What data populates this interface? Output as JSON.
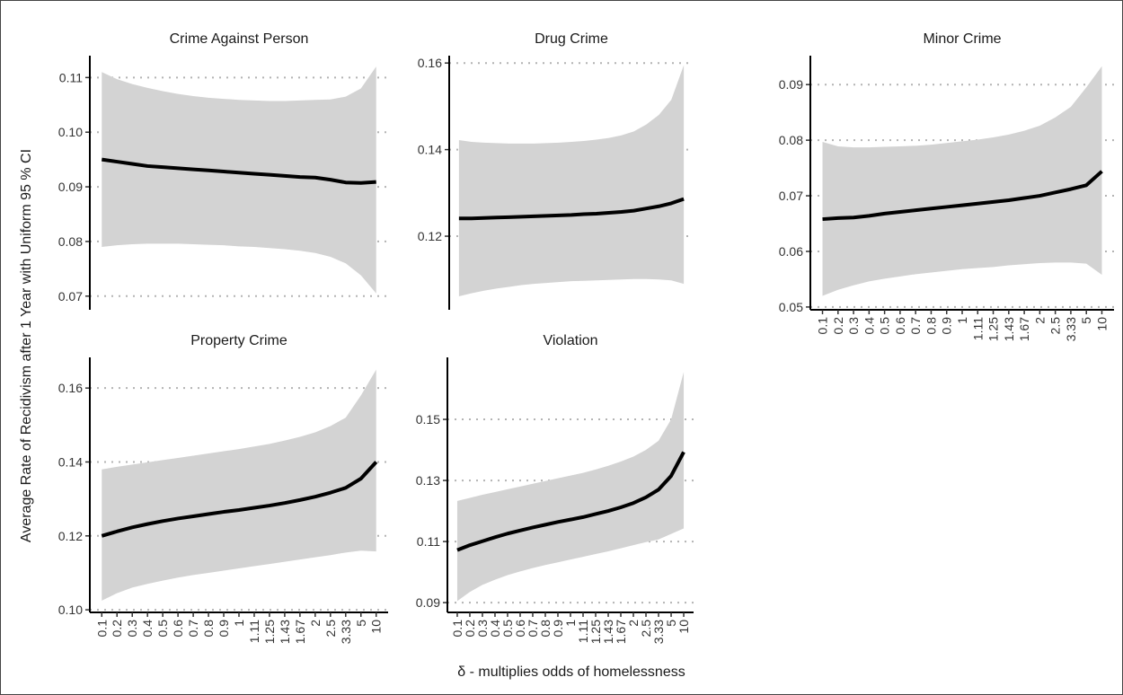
{
  "ylabel": "Average Rate of Recidivism after 1 Year with Uniform 95 % CI",
  "xlabel": "δ - multiplies odds of homelessness",
  "chart_data": [
    {
      "type": "line",
      "title": "Crime Against Person",
      "color": "#000000",
      "band_color": "#d3d3d3",
      "values": [
        0.095,
        0.0946,
        0.0942,
        0.0938,
        0.0936,
        0.0934,
        0.0932,
        0.093,
        0.0928,
        0.0926,
        0.0924,
        0.0922,
        0.092,
        0.0918,
        0.0917,
        0.0913,
        0.0908,
        0.0907,
        0.0909
      ],
      "upper": [
        0.111,
        0.1097,
        0.1088,
        0.1081,
        0.1075,
        0.107,
        0.1066,
        0.1063,
        0.1061,
        0.1059,
        0.1058,
        0.1057,
        0.1057,
        0.1058,
        0.1059,
        0.106,
        0.1065,
        0.108,
        0.112
      ],
      "lower": [
        0.079,
        0.0793,
        0.0795,
        0.0796,
        0.0796,
        0.0796,
        0.0795,
        0.0794,
        0.0793,
        0.0791,
        0.079,
        0.0788,
        0.0786,
        0.0783,
        0.0779,
        0.0772,
        0.076,
        0.0738,
        0.0705
      ],
      "ylim": [
        0.0675,
        0.114
      ],
      "yticks": [
        0.07,
        0.08,
        0.09,
        {
          "value": 0.1,
          "label": "0.10"
        },
        0.11
      ],
      "grid": true
    },
    {
      "type": "line",
      "title": "Drug Crime",
      "color": "#000000",
      "band_color": "#d3d3d3",
      "values": [
        0.1241,
        0.1241,
        0.1242,
        0.1243,
        0.1244,
        0.1245,
        0.1246,
        0.1247,
        0.1248,
        0.1249,
        0.1251,
        0.1252,
        0.1254,
        0.1256,
        0.1259,
        0.1264,
        0.1269,
        0.1276,
        0.1286
      ],
      "upper": [
        0.1422,
        0.1418,
        0.1416,
        0.1415,
        0.1414,
        0.1414,
        0.1414,
        0.1415,
        0.1416,
        0.1418,
        0.142,
        0.1423,
        0.1427,
        0.1433,
        0.1442,
        0.1458,
        0.148,
        0.1515,
        0.1595
      ],
      "lower": [
        0.1061,
        0.1068,
        0.1074,
        0.1079,
        0.1083,
        0.1087,
        0.109,
        0.1092,
        0.1094,
        0.1096,
        0.1097,
        0.1098,
        0.1099,
        0.11,
        0.1101,
        0.1101,
        0.11,
        0.1098,
        0.109
      ],
      "ylim": [
        0.103,
        0.1617
      ],
      "yticks": [
        0.12,
        0.14,
        0.16
      ],
      "grid": true
    },
    {
      "type": "line",
      "title": "Minor Crime",
      "color": "#000000",
      "band_color": "#d3d3d3",
      "categories": [
        "0.1",
        "0.2",
        "0.3",
        "0.4",
        "0.5",
        "0.6",
        "0.7",
        "0.8",
        "0.9",
        "1",
        "1.11",
        "1.25",
        "1.43",
        "1.67",
        "2",
        "2.5",
        "3.33",
        "5",
        "10"
      ],
      "values": [
        0.0658,
        0.066,
        0.0661,
        0.0664,
        0.0668,
        0.0671,
        0.0674,
        0.0677,
        0.068,
        0.0683,
        0.0686,
        0.0689,
        0.0692,
        0.0696,
        0.07,
        0.0706,
        0.0712,
        0.0719,
        0.0744
      ],
      "upper": [
        0.0797,
        0.0789,
        0.0787,
        0.0787,
        0.0788,
        0.0789,
        0.079,
        0.0792,
        0.0795,
        0.0798,
        0.0801,
        0.0805,
        0.081,
        0.0817,
        0.0826,
        0.0841,
        0.086,
        0.0895,
        0.0933
      ],
      "lower": [
        0.052,
        0.0531,
        0.0539,
        0.0546,
        0.0551,
        0.0555,
        0.0559,
        0.0562,
        0.0565,
        0.0568,
        0.057,
        0.0572,
        0.0575,
        0.0577,
        0.0579,
        0.058,
        0.058,
        0.0578,
        0.0558
      ],
      "ylim": [
        0.0495,
        0.0952
      ],
      "yticks": [
        0.05,
        0.06,
        0.07,
        0.08,
        0.09
      ],
      "grid": true
    },
    {
      "type": "line",
      "title": "Property Crime",
      "color": "#000000",
      "band_color": "#d3d3d3",
      "categories": [
        "0.1",
        "0.2",
        "0.3",
        "0.4",
        "0.5",
        "0.6",
        "0.7",
        "0.8",
        "0.9",
        "1",
        "1.11",
        "1.25",
        "1.43",
        "1.67",
        "2",
        "2.5",
        "3.33",
        "5",
        "10"
      ],
      "values": [
        0.12,
        0.1212,
        0.1223,
        0.1232,
        0.124,
        0.1247,
        0.1253,
        0.1259,
        0.1265,
        0.127,
        0.1276,
        0.1282,
        0.1289,
        0.1297,
        0.1306,
        0.1317,
        0.133,
        0.1355,
        0.14
      ],
      "upper": [
        0.138,
        0.1387,
        0.1393,
        0.1399,
        0.1405,
        0.1411,
        0.1417,
        0.1423,
        0.1429,
        0.1435,
        0.1442,
        0.1449,
        0.1458,
        0.1468,
        0.148,
        0.1497,
        0.152,
        0.158,
        0.165
      ],
      "lower": [
        0.1025,
        0.1045,
        0.106,
        0.107,
        0.1079,
        0.1087,
        0.1094,
        0.11,
        0.1106,
        0.1112,
        0.1118,
        0.1124,
        0.113,
        0.1136,
        0.1142,
        0.1148,
        0.1155,
        0.116,
        0.1158
      ],
      "ylim": [
        0.0993,
        0.1683
      ],
      "yticks": [
        {
          "value": 0.1,
          "label": "0.10"
        },
        0.12,
        0.14,
        0.16
      ],
      "grid": true
    },
    {
      "type": "line",
      "title": "Violation",
      "color": "#000000",
      "band_color": "#d3d3d3",
      "categories": [
        "0.1",
        "0.2",
        "0.3",
        "0.4",
        "0.5",
        "0.6",
        "0.7",
        "0.8",
        "0.9",
        "1",
        "1.11",
        "1.25",
        "1.43",
        "1.67",
        "2",
        "2.5",
        "3.33",
        "5",
        "10"
      ],
      "values": [
        0.1072,
        0.1088,
        0.1101,
        0.1114,
        0.1126,
        0.1136,
        0.1146,
        0.1155,
        0.1164,
        0.1172,
        0.118,
        0.119,
        0.12,
        0.1212,
        0.1226,
        0.1245,
        0.127,
        0.1315,
        0.1393
      ],
      "upper": [
        0.1233,
        0.1243,
        0.1253,
        0.1262,
        0.1271,
        0.128,
        0.1289,
        0.1298,
        0.1307,
        0.1316,
        0.1325,
        0.1336,
        0.1348,
        0.1362,
        0.1378,
        0.14,
        0.143,
        0.15,
        0.1655
      ],
      "lower": [
        0.0905,
        0.0935,
        0.0958,
        0.0975,
        0.099,
        0.1002,
        0.1013,
        0.1023,
        0.1032,
        0.1041,
        0.105,
        0.1059,
        0.1068,
        0.1078,
        0.1088,
        0.1098,
        0.1107,
        0.1125,
        0.1143
      ],
      "ylim": [
        0.0868,
        0.1703
      ],
      "yticks": [
        0.09,
        0.11,
        0.13,
        0.15
      ],
      "grid": true
    }
  ]
}
